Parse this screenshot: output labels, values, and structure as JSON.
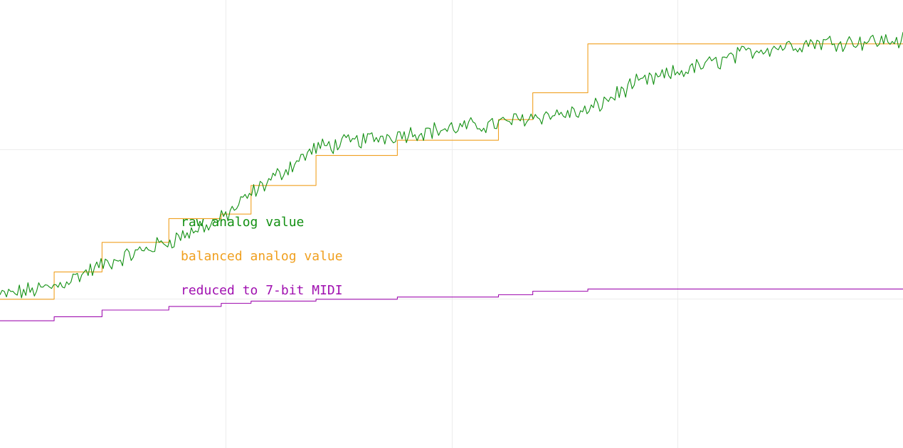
{
  "chart_data": {
    "type": "line",
    "title": "",
    "xlabel": "",
    "ylabel": "",
    "xlim": [
      0,
      100
    ],
    "ylim": [
      0,
      100
    ],
    "grid": true,
    "legend_placement": "center-left",
    "series": [
      {
        "name": "raw analog value",
        "color": "#129012",
        "style": "noisy",
        "x": [
          0,
          6,
          11.5,
          18.5,
          24.5,
          28,
          35,
          44,
          55.5,
          59,
          65,
          70,
          79,
          84,
          90,
          100
        ],
        "values": [
          34,
          36,
          41,
          46,
          51,
          57,
          67,
          70,
          72.5,
          74,
          75,
          81,
          86,
          89,
          90.5,
          91
        ]
      },
      {
        "name": "balanced analog value",
        "color": "#f0a020",
        "style": "step",
        "x": [
          0,
          6,
          11.3,
          18.7,
          24.5,
          27.8,
          35,
          44,
          55.2,
          59,
          65.1,
          100
        ],
        "values": [
          33.2,
          39.3,
          45.9,
          51.2,
          52.2,
          58.6,
          65.3,
          68.7,
          73.3,
          79.3,
          90.2,
          90.2
        ]
      },
      {
        "name": "reduced to 7-bit MIDI",
        "color": "#a010b0",
        "style": "step",
        "x": [
          0,
          6,
          11.3,
          18.7,
          24.5,
          27.8,
          35,
          44,
          55.2,
          59,
          65.1,
          100
        ],
        "values": [
          28.4,
          29.3,
          30.8,
          31.6,
          32.3,
          32.8,
          33.2,
          33.7,
          34.2,
          35.0,
          35.5,
          35.5
        ]
      }
    ]
  }
}
